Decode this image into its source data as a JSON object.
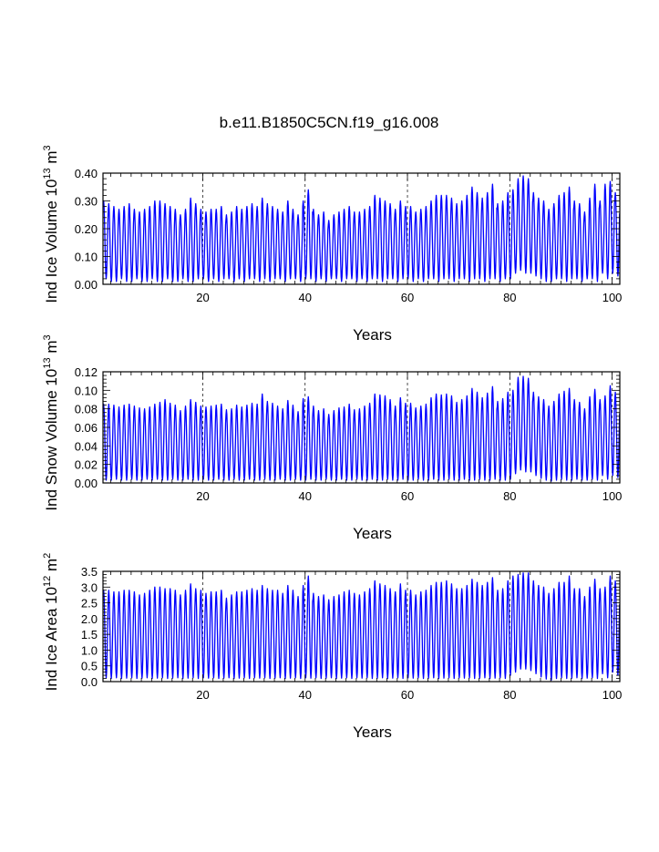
{
  "figure": {
    "title": "b.e11.B1850C5CN.f19_g16.008"
  },
  "chart_data": [
    {
      "type": "line",
      "name": "ice-volume",
      "ylabel_main": "Ind Ice Volume 10",
      "ylabel_exp": "13",
      "ylabel_unit": " m",
      "ylabel_unit_exp": "3",
      "xlabel": "Years",
      "xlim": [
        0.5,
        101.5
      ],
      "ylim": [
        0,
        0.4
      ],
      "xticks": [
        20,
        40,
        60,
        80,
        100
      ],
      "xtick_labels": [
        "20",
        "40",
        "60",
        "80",
        "100"
      ],
      "yticks": [
        0,
        0.1,
        0.2,
        0.3,
        0.4
      ],
      "ytick_labels": [
        "0.00",
        "0.10",
        "0.20",
        "0.30",
        "0.40"
      ],
      "grid_x": "dashed",
      "color": "#0000ff",
      "x": [
        1,
        2,
        3,
        4,
        5,
        6,
        7,
        8,
        9,
        10,
        11,
        12,
        13,
        14,
        15,
        16,
        17,
        18,
        19,
        20,
        21,
        22,
        23,
        24,
        25,
        26,
        27,
        28,
        29,
        30,
        31,
        32,
        33,
        34,
        35,
        36,
        37,
        38,
        39,
        40,
        41,
        42,
        43,
        44,
        45,
        46,
        47,
        48,
        49,
        50,
        51,
        52,
        53,
        54,
        55,
        56,
        57,
        58,
        59,
        60,
        61,
        62,
        63,
        64,
        65,
        66,
        67,
        68,
        69,
        70,
        71,
        72,
        73,
        74,
        75,
        76,
        77,
        78,
        79,
        80,
        81,
        82,
        83,
        84,
        85,
        86,
        87,
        88,
        89,
        90,
        91,
        92,
        93,
        94,
        95,
        96,
        97,
        98,
        99,
        100,
        101
      ],
      "annual_max": [
        0.3,
        0.29,
        0.28,
        0.27,
        0.28,
        0.29,
        0.27,
        0.26,
        0.27,
        0.28,
        0.3,
        0.3,
        0.29,
        0.28,
        0.27,
        0.25,
        0.27,
        0.31,
        0.29,
        0.27,
        0.26,
        0.27,
        0.27,
        0.28,
        0.25,
        0.26,
        0.28,
        0.27,
        0.28,
        0.29,
        0.28,
        0.31,
        0.29,
        0.28,
        0.27,
        0.26,
        0.3,
        0.27,
        0.25,
        0.3,
        0.34,
        0.27,
        0.25,
        0.26,
        0.23,
        0.25,
        0.26,
        0.27,
        0.28,
        0.26,
        0.26,
        0.27,
        0.28,
        0.32,
        0.31,
        0.3,
        0.29,
        0.27,
        0.3,
        0.28,
        0.28,
        0.26,
        0.27,
        0.28,
        0.3,
        0.32,
        0.32,
        0.32,
        0.31,
        0.29,
        0.3,
        0.32,
        0.35,
        0.33,
        0.31,
        0.33,
        0.36,
        0.29,
        0.3,
        0.33,
        0.34,
        0.38,
        0.39,
        0.38,
        0.33,
        0.31,
        0.3,
        0.27,
        0.29,
        0.32,
        0.33,
        0.35,
        0.3,
        0.29,
        0.26,
        0.31,
        0.36,
        0.3,
        0.36,
        0.37,
        0.33
      ],
      "annual_min": [
        0.02,
        0.01,
        0.01,
        0.02,
        0.01,
        0.01,
        0.02,
        0.01,
        0.01,
        0.02,
        0.01,
        0.01,
        0.02,
        0.01,
        0.01,
        0.02,
        0.01,
        0.01,
        0.02,
        0.02,
        0.01,
        0.02,
        0.01,
        0.02,
        0.02,
        0.01,
        0.02,
        0.01,
        0.02,
        0.02,
        0.01,
        0.02,
        0.01,
        0.02,
        0.02,
        0.01,
        0.02,
        0.02,
        0.01,
        0.02,
        0.02,
        0.01,
        0.02,
        0.01,
        0.02,
        0.02,
        0.01,
        0.02,
        0.02,
        0.01,
        0.02,
        0.01,
        0.02,
        0.02,
        0.01,
        0.02,
        0.02,
        0.01,
        0.02,
        0.02,
        0.01,
        0.02,
        0.01,
        0.02,
        0.02,
        0.01,
        0.02,
        0.02,
        0.01,
        0.02,
        0.02,
        0.01,
        0.02,
        0.02,
        0.01,
        0.02,
        0.02,
        0.01,
        0.02,
        0.02,
        0.04,
        0.05,
        0.04,
        0.04,
        0.03,
        0.02,
        0.01,
        0.01,
        0.02,
        0.02,
        0.01,
        0.02,
        0.02,
        0.01,
        0.02,
        0.02,
        0.01,
        0.04,
        0.02,
        0.04,
        0.03
      ]
    },
    {
      "type": "line",
      "name": "snow-volume",
      "ylabel_main": "Ind Snow Volume 10",
      "ylabel_exp": "13",
      "ylabel_unit": " m",
      "ylabel_unit_exp": "3",
      "xlabel": "Years",
      "xlim": [
        0.5,
        101.5
      ],
      "ylim": [
        0,
        0.12
      ],
      "xticks": [
        20,
        40,
        60,
        80,
        100
      ],
      "xtick_labels": [
        "20",
        "40",
        "60",
        "80",
        "100"
      ],
      "yticks": [
        0,
        0.02,
        0.04,
        0.06,
        0.08,
        0.1,
        0.12
      ],
      "ytick_labels": [
        "0.00",
        "0.02",
        "0.04",
        "0.06",
        "0.08",
        "0.10",
        "0.12"
      ],
      "grid_x": "dashed",
      "color": "#0000ff",
      "x": [
        1,
        2,
        3,
        4,
        5,
        6,
        7,
        8,
        9,
        10,
        11,
        12,
        13,
        14,
        15,
        16,
        17,
        18,
        19,
        20,
        21,
        22,
        23,
        24,
        25,
        26,
        27,
        28,
        29,
        30,
        31,
        32,
        33,
        34,
        35,
        36,
        37,
        38,
        39,
        40,
        41,
        42,
        43,
        44,
        45,
        46,
        47,
        48,
        49,
        50,
        51,
        52,
        53,
        54,
        55,
        56,
        57,
        58,
        59,
        60,
        61,
        62,
        63,
        64,
        65,
        66,
        67,
        68,
        69,
        70,
        71,
        72,
        73,
        74,
        75,
        76,
        77,
        78,
        79,
        80,
        81,
        82,
        83,
        84,
        85,
        86,
        87,
        88,
        89,
        90,
        91,
        92,
        93,
        94,
        95,
        96,
        97,
        98,
        99,
        100,
        101
      ],
      "annual_max": [
        0.085,
        0.085,
        0.084,
        0.082,
        0.084,
        0.085,
        0.083,
        0.081,
        0.08,
        0.082,
        0.085,
        0.087,
        0.09,
        0.086,
        0.084,
        0.078,
        0.083,
        0.09,
        0.087,
        0.083,
        0.082,
        0.083,
        0.084,
        0.085,
        0.079,
        0.08,
        0.084,
        0.082,
        0.084,
        0.086,
        0.085,
        0.096,
        0.088,
        0.086,
        0.083,
        0.08,
        0.089,
        0.084,
        0.077,
        0.091,
        0.093,
        0.083,
        0.078,
        0.08,
        0.074,
        0.078,
        0.081,
        0.082,
        0.085,
        0.079,
        0.08,
        0.083,
        0.086,
        0.096,
        0.095,
        0.094,
        0.09,
        0.083,
        0.092,
        0.086,
        0.086,
        0.081,
        0.083,
        0.085,
        0.092,
        0.096,
        0.095,
        0.096,
        0.094,
        0.087,
        0.09,
        0.094,
        0.102,
        0.098,
        0.092,
        0.097,
        0.104,
        0.088,
        0.091,
        0.098,
        0.1,
        0.114,
        0.115,
        0.113,
        0.098,
        0.093,
        0.09,
        0.083,
        0.088,
        0.096,
        0.099,
        0.102,
        0.09,
        0.087,
        0.08,
        0.093,
        0.101,
        0.09,
        0.094,
        0.105,
        0.098
      ],
      "annual_min": [
        0.003,
        0.003,
        0.004,
        0.003,
        0.003,
        0.004,
        0.003,
        0.003,
        0.004,
        0.003,
        0.004,
        0.003,
        0.003,
        0.004,
        0.003,
        0.003,
        0.004,
        0.003,
        0.003,
        0.004,
        0.003,
        0.003,
        0.004,
        0.003,
        0.003,
        0.004,
        0.003,
        0.003,
        0.004,
        0.003,
        0.003,
        0.004,
        0.003,
        0.003,
        0.004,
        0.003,
        0.003,
        0.004,
        0.003,
        0.003,
        0.004,
        0.003,
        0.003,
        0.004,
        0.003,
        0.003,
        0.004,
        0.003,
        0.003,
        0.004,
        0.003,
        0.003,
        0.004,
        0.003,
        0.003,
        0.004,
        0.003,
        0.003,
        0.004,
        0.003,
        0.003,
        0.004,
        0.003,
        0.003,
        0.004,
        0.003,
        0.003,
        0.004,
        0.003,
        0.003,
        0.004,
        0.003,
        0.003,
        0.004,
        0.003,
        0.003,
        0.004,
        0.003,
        0.003,
        0.004,
        0.01,
        0.014,
        0.012,
        0.012,
        0.008,
        0.005,
        0.003,
        0.002,
        0.003,
        0.004,
        0.003,
        0.003,
        0.004,
        0.003,
        0.003,
        0.004,
        0.003,
        0.008,
        0.004,
        0.008,
        0.006
      ]
    },
    {
      "type": "line",
      "name": "ice-area",
      "ylabel_main": "Ind Ice Area 10",
      "ylabel_exp": "12",
      "ylabel_unit": " m",
      "ylabel_unit_exp": "2",
      "xlabel": "Years",
      "xlim": [
        0.5,
        101.5
      ],
      "ylim": [
        0,
        3.5
      ],
      "xticks": [
        20,
        40,
        60,
        80,
        100
      ],
      "xtick_labels": [
        "20",
        "40",
        "60",
        "80",
        "100"
      ],
      "yticks": [
        0,
        0.5,
        1.0,
        1.5,
        2.0,
        2.5,
        3.0,
        3.5
      ],
      "ytick_labels": [
        "0.0",
        "0.5",
        "1.0",
        "1.5",
        "2.0",
        "2.5",
        "3.0",
        "3.5"
      ],
      "grid_x": "dashed",
      "color": "#0000ff",
      "x": [
        1,
        2,
        3,
        4,
        5,
        6,
        7,
        8,
        9,
        10,
        11,
        12,
        13,
        14,
        15,
        16,
        17,
        18,
        19,
        20,
        21,
        22,
        23,
        24,
        25,
        26,
        27,
        28,
        29,
        30,
        31,
        32,
        33,
        34,
        35,
        36,
        37,
        38,
        39,
        40,
        41,
        42,
        43,
        44,
        45,
        46,
        47,
        48,
        49,
        50,
        51,
        52,
        53,
        54,
        55,
        56,
        57,
        58,
        59,
        60,
        61,
        62,
        63,
        64,
        65,
        66,
        67,
        68,
        69,
        70,
        71,
        72,
        73,
        74,
        75,
        76,
        77,
        78,
        79,
        80,
        81,
        82,
        83,
        84,
        85,
        86,
        87,
        88,
        89,
        90,
        91,
        92,
        93,
        94,
        95,
        96,
        97,
        98,
        99,
        100,
        101
      ],
      "annual_max": [
        2.9,
        2.9,
        2.85,
        2.85,
        2.9,
        2.9,
        2.85,
        2.75,
        2.8,
        2.9,
        3.0,
        3.0,
        2.95,
        2.95,
        2.9,
        2.75,
        2.9,
        3.1,
        2.95,
        2.9,
        2.8,
        2.85,
        2.85,
        2.9,
        2.65,
        2.75,
        2.85,
        2.85,
        2.9,
        2.95,
        2.9,
        3.05,
        2.95,
        2.9,
        2.9,
        2.8,
        3.05,
        2.9,
        2.7,
        3.05,
        3.35,
        2.8,
        2.7,
        2.75,
        2.6,
        2.7,
        2.75,
        2.85,
        2.9,
        2.8,
        2.75,
        2.85,
        2.95,
        3.2,
        3.1,
        3.05,
        2.95,
        2.85,
        3.1,
        2.9,
        2.9,
        2.75,
        2.85,
        2.9,
        3.05,
        3.15,
        3.15,
        3.2,
        3.1,
        2.95,
        2.95,
        3.05,
        3.25,
        3.15,
        3.05,
        3.15,
        3.3,
        2.9,
        2.95,
        3.2,
        3.35,
        3.4,
        3.45,
        3.45,
        3.2,
        3.05,
        3.0,
        2.8,
        2.95,
        3.15,
        3.15,
        3.35,
        2.95,
        2.95,
        2.7,
        3.0,
        3.25,
        2.95,
        3.0,
        3.35,
        3.2
      ],
      "annual_min": [
        0.12,
        0.1,
        0.12,
        0.1,
        0.11,
        0.12,
        0.1,
        0.11,
        0.12,
        0.1,
        0.11,
        0.12,
        0.1,
        0.11,
        0.12,
        0.1,
        0.11,
        0.12,
        0.1,
        0.12,
        0.11,
        0.12,
        0.1,
        0.11,
        0.12,
        0.1,
        0.11,
        0.12,
        0.1,
        0.12,
        0.11,
        0.12,
        0.1,
        0.11,
        0.12,
        0.1,
        0.11,
        0.12,
        0.1,
        0.12,
        0.11,
        0.12,
        0.1,
        0.11,
        0.12,
        0.1,
        0.11,
        0.12,
        0.1,
        0.12,
        0.11,
        0.12,
        0.1,
        0.11,
        0.12,
        0.1,
        0.11,
        0.12,
        0.1,
        0.12,
        0.11,
        0.12,
        0.1,
        0.11,
        0.12,
        0.1,
        0.11,
        0.12,
        0.1,
        0.12,
        0.11,
        0.12,
        0.1,
        0.11,
        0.12,
        0.1,
        0.11,
        0.12,
        0.1,
        0.2,
        0.3,
        0.4,
        0.4,
        0.35,
        0.25,
        0.15,
        0.08,
        0.05,
        0.1,
        0.12,
        0.1,
        0.11,
        0.12,
        0.1,
        0.11,
        0.12,
        0.1,
        0.25,
        0.12,
        0.3,
        0.2
      ]
    }
  ]
}
